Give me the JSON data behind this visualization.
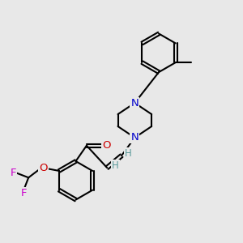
{
  "bg_color": "#e8e8e8",
  "bond_color": "#000000",
  "N_color": "#0000cc",
  "O_color": "#cc0000",
  "F_color": "#cc00cc",
  "H_color": "#5a9a9a",
  "lw": 1.5,
  "fs": 9.5,
  "xlim": [
    0,
    10
  ],
  "ylim": [
    0,
    10
  ]
}
